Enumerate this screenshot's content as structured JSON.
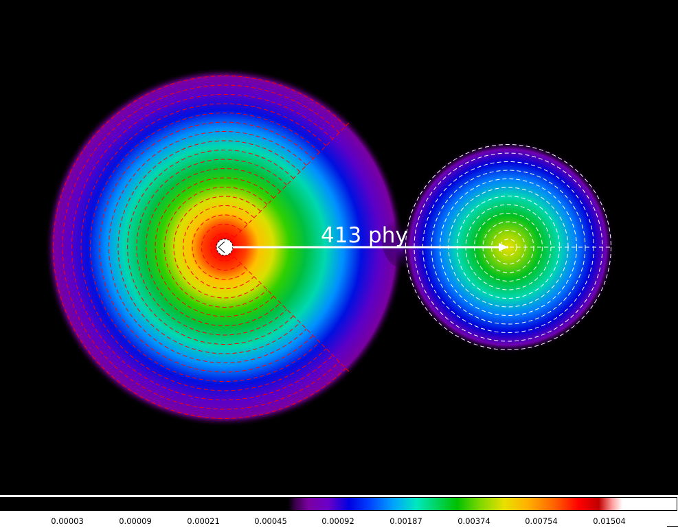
{
  "measurement": {
    "label": "413 phy"
  },
  "colorbar": {
    "ticks": [
      "0.00003",
      "0.00009",
      "0.00021",
      "0.00045",
      "0.00092",
      "0.00187",
      "0.00374",
      "0.00754",
      "0.01504"
    ]
  },
  "colors": {
    "background": "#000000",
    "left_annulus_contours": "#ff0000",
    "right_annulus_contours": "#ffffff",
    "measure_line": "#ffffff"
  },
  "icons": {
    "left_source_marker": "circle-dashed-icon",
    "right_source_marker": "crosshair-icon"
  }
}
